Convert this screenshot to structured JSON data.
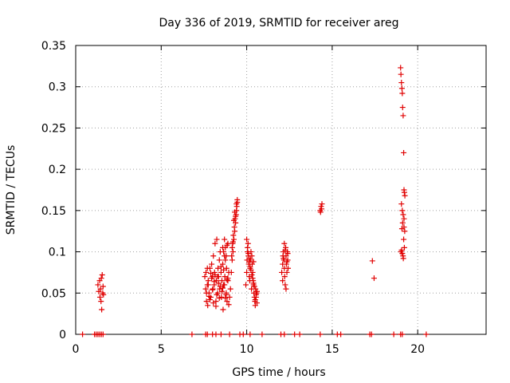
{
  "chart_data": {
    "type": "scatter",
    "title": "Day 336 of 2019, SRMTID for receiver areg",
    "xlabel": "GPS time / hours",
    "ylabel": "SRMTID / TECUs",
    "xlim": [
      0,
      24
    ],
    "ylim": [
      0,
      0.35
    ],
    "x_ticks": [
      0,
      5,
      10,
      15,
      20
    ],
    "x_tick_labels": [
      "0",
      "5",
      "10",
      "15",
      "20"
    ],
    "y_ticks": [
      0,
      0.05,
      0.1,
      0.15,
      0.2,
      0.25,
      0.3,
      0.35
    ],
    "y_tick_labels": [
      "0",
      "0.05",
      "0.1",
      "0.15",
      "0.2",
      "0.25",
      "0.3",
      "0.35"
    ],
    "grid": true,
    "marker": "+",
    "color": "#e00000",
    "series": [
      {
        "name": "SRMTID",
        "x": [
          0.4,
          1.1,
          1.2,
          1.3,
          1.4,
          1.5,
          1.6,
          6.8,
          7.6,
          7.7,
          8.0,
          8.2,
          8.5,
          9.0,
          9.6,
          9.8,
          10.2,
          10.9,
          12.0,
          12.2,
          12.8,
          13.1,
          14.3,
          15.3,
          15.5,
          17.2,
          17.3,
          18.6,
          19.0,
          19.1,
          20.5,
          1.3,
          1.35,
          1.4,
          1.42,
          1.45,
          1.48,
          1.5,
          1.52,
          1.55,
          1.58,
          1.6,
          1.62,
          7.55,
          7.6,
          7.62,
          7.65,
          7.7,
          7.72,
          7.75,
          7.8,
          7.85,
          7.9,
          7.95,
          8.0,
          8.02,
          8.05,
          8.1,
          8.12,
          8.15,
          8.2,
          8.22,
          8.25,
          8.3,
          8.32,
          8.35,
          8.4,
          8.42,
          8.45,
          8.5,
          8.52,
          8.55,
          8.6,
          8.62,
          8.65,
          8.7,
          8.72,
          8.75,
          8.8,
          8.82,
          8.85,
          8.9,
          8.95,
          9.0,
          9.05,
          7.65,
          7.75,
          7.85,
          7.95,
          8.05,
          8.15,
          8.25,
          8.35,
          8.45,
          8.55,
          8.65,
          8.75,
          8.85,
          8.95,
          7.7,
          7.8,
          7.9,
          8.0,
          8.1,
          8.2,
          8.3,
          8.4,
          8.5,
          8.6,
          8.7,
          8.8,
          8.9,
          8.6,
          8.7,
          8.8,
          8.9,
          8.65,
          8.75,
          8.85,
          9.1,
          9.12,
          9.15,
          9.18,
          9.2,
          9.22,
          9.25,
          9.28,
          9.3,
          9.32,
          9.35,
          9.38,
          9.4,
          9.42,
          9.45,
          9.15,
          9.25,
          9.35,
          9.45,
          9.2,
          9.3,
          9.4,
          9.95,
          10.0,
          10.02,
          10.05,
          10.08,
          10.1,
          10.12,
          10.15,
          10.18,
          10.2,
          10.22,
          10.25,
          10.28,
          10.3,
          10.32,
          10.35,
          10.38,
          10.4,
          10.42,
          10.45,
          10.48,
          10.5,
          10.52,
          10.55,
          10.58,
          10.6,
          10.05,
          10.15,
          10.25,
          10.35,
          10.45,
          10.55,
          10.1,
          10.2,
          10.3,
          10.4,
          10.5,
          10.0,
          10.2,
          10.4,
          10.6,
          12.05,
          12.1,
          12.12,
          12.15,
          12.18,
          12.2,
          12.22,
          12.25,
          12.28,
          12.3,
          12.32,
          12.35,
          12.38,
          12.4,
          12.42,
          12.1,
          12.2,
          12.3,
          12.4,
          12.15,
          12.25,
          12.35,
          14.3,
          14.35,
          14.4,
          14.38,
          14.32,
          17.35,
          17.45,
          19.0,
          19.02,
          19.05,
          19.08,
          19.1,
          19.12,
          19.15,
          19.18,
          19.2,
          19.22,
          19.25,
          19.05,
          19.1,
          19.15,
          19.2,
          19.08,
          19.12,
          19.18,
          19.22,
          19.02,
          19.06,
          19.1,
          19.14,
          19.16,
          19.2,
          19.24
        ],
        "y": [
          0,
          0,
          0,
          0,
          0,
          0,
          0,
          0,
          0,
          0,
          0,
          0,
          0,
          0,
          0,
          0,
          0,
          0,
          0,
          0,
          0,
          0,
          0,
          0,
          0,
          0,
          0,
          0,
          0,
          0,
          0,
          0.06,
          0.052,
          0.065,
          0.045,
          0.055,
          0.04,
          0.068,
          0.03,
          0.072,
          0.05,
          0.058,
          0.048,
          0.07,
          0.055,
          0.075,
          0.04,
          0.06,
          0.035,
          0.065,
          0.05,
          0.08,
          0.045,
          0.085,
          0.07,
          0.055,
          0.095,
          0.06,
          0.075,
          0.11,
          0.04,
          0.065,
          0.115,
          0.05,
          0.08,
          0.07,
          0.09,
          0.055,
          0.1,
          0.075,
          0.045,
          0.065,
          0.085,
          0.03,
          0.06,
          0.095,
          0.07,
          0.105,
          0.05,
          0.08,
          0.04,
          0.065,
          0.075,
          0.045,
          0.055,
          0.05,
          0.06,
          0.042,
          0.068,
          0.038,
          0.072,
          0.048,
          0.062,
          0.058,
          0.052,
          0.078,
          0.044,
          0.066,
          0.036,
          0.08,
          0.046,
          0.074,
          0.054,
          0.064,
          0.034,
          0.07,
          0.044,
          0.082,
          0.056,
          0.06,
          0.048,
          0.068,
          0.105,
          0.115,
          0.095,
          0.11,
          0.1,
          0.09,
          0.108,
          0.075,
          0.095,
          0.09,
          0.11,
          0.1,
          0.12,
          0.115,
          0.13,
          0.125,
          0.14,
          0.135,
          0.145,
          0.15,
          0.155,
          0.16,
          0.105,
          0.138,
          0.143,
          0.163,
          0.112,
          0.148,
          0.158,
          0.06,
          0.075,
          0.09,
          0.1,
          0.11,
          0.095,
          0.085,
          0.07,
          0.065,
          0.08,
          0.09,
          0.1,
          0.055,
          0.095,
          0.085,
          0.075,
          0.065,
          0.06,
          0.05,
          0.045,
          0.04,
          0.035,
          0.055,
          0.045,
          0.05,
          0.052,
          0.105,
          0.088,
          0.078,
          0.068,
          0.058,
          0.048,
          0.098,
          0.082,
          0.072,
          0.062,
          0.042,
          0.115,
          0.092,
          0.088,
          0.038,
          0.075,
          0.085,
          0.095,
          0.1,
          0.09,
          0.08,
          0.07,
          0.06,
          0.105,
          0.095,
          0.085,
          0.075,
          0.1,
          0.09,
          0.08,
          0.065,
          0.11,
          0.055,
          0.098,
          0.092,
          0.102,
          0.088,
          0.15,
          0.155,
          0.158,
          0.152,
          0.148,
          0.089,
          0.068,
          0.323,
          0.315,
          0.305,
          0.298,
          0.292,
          0.275,
          0.265,
          0.22,
          0.175,
          0.172,
          0.168,
          0.158,
          0.15,
          0.145,
          0.13,
          0.128,
          0.135,
          0.115,
          0.105,
          0.1,
          0.102,
          0.098,
          0.095,
          0.092,
          0.14,
          0.125
        ]
      }
    ]
  }
}
